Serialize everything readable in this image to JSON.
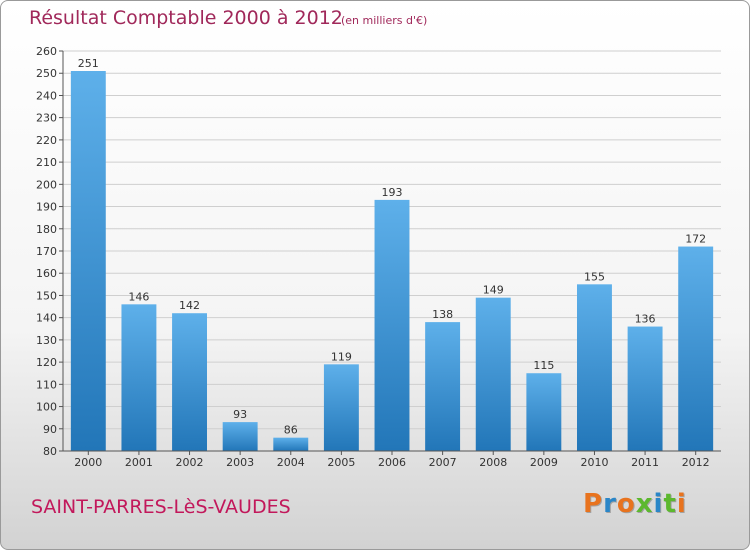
{
  "header": {
    "title": "Résultat Comptable 2000 à 2012",
    "unit": "(en milliers d'€)"
  },
  "footer": {
    "commune": "SAINT-PARRES-LèS-VAUDES",
    "logo": "Proxiti"
  },
  "colors": {
    "title": "#a0285a",
    "bar_top": "#5eb0ea",
    "bar_bottom": "#2276b8",
    "logo": [
      "#e8731e",
      "#2a86c8",
      "#e8731e",
      "#5cb82e",
      "#2a86c8",
      "#5cb82e",
      "#e8731e"
    ]
  },
  "chart_data": {
    "type": "bar",
    "categories": [
      "2000",
      "2001",
      "2002",
      "2003",
      "2004",
      "2005",
      "2006",
      "2007",
      "2008",
      "2009",
      "2010",
      "2011",
      "2012"
    ],
    "values": [
      251,
      146,
      142,
      93,
      86,
      119,
      193,
      138,
      149,
      115,
      155,
      136,
      172
    ],
    "ylim": [
      80,
      260
    ],
    "yticks": [
      80,
      90,
      100,
      110,
      120,
      130,
      140,
      150,
      160,
      170,
      180,
      190,
      200,
      210,
      220,
      230,
      240,
      250,
      260
    ],
    "grid": true
  }
}
